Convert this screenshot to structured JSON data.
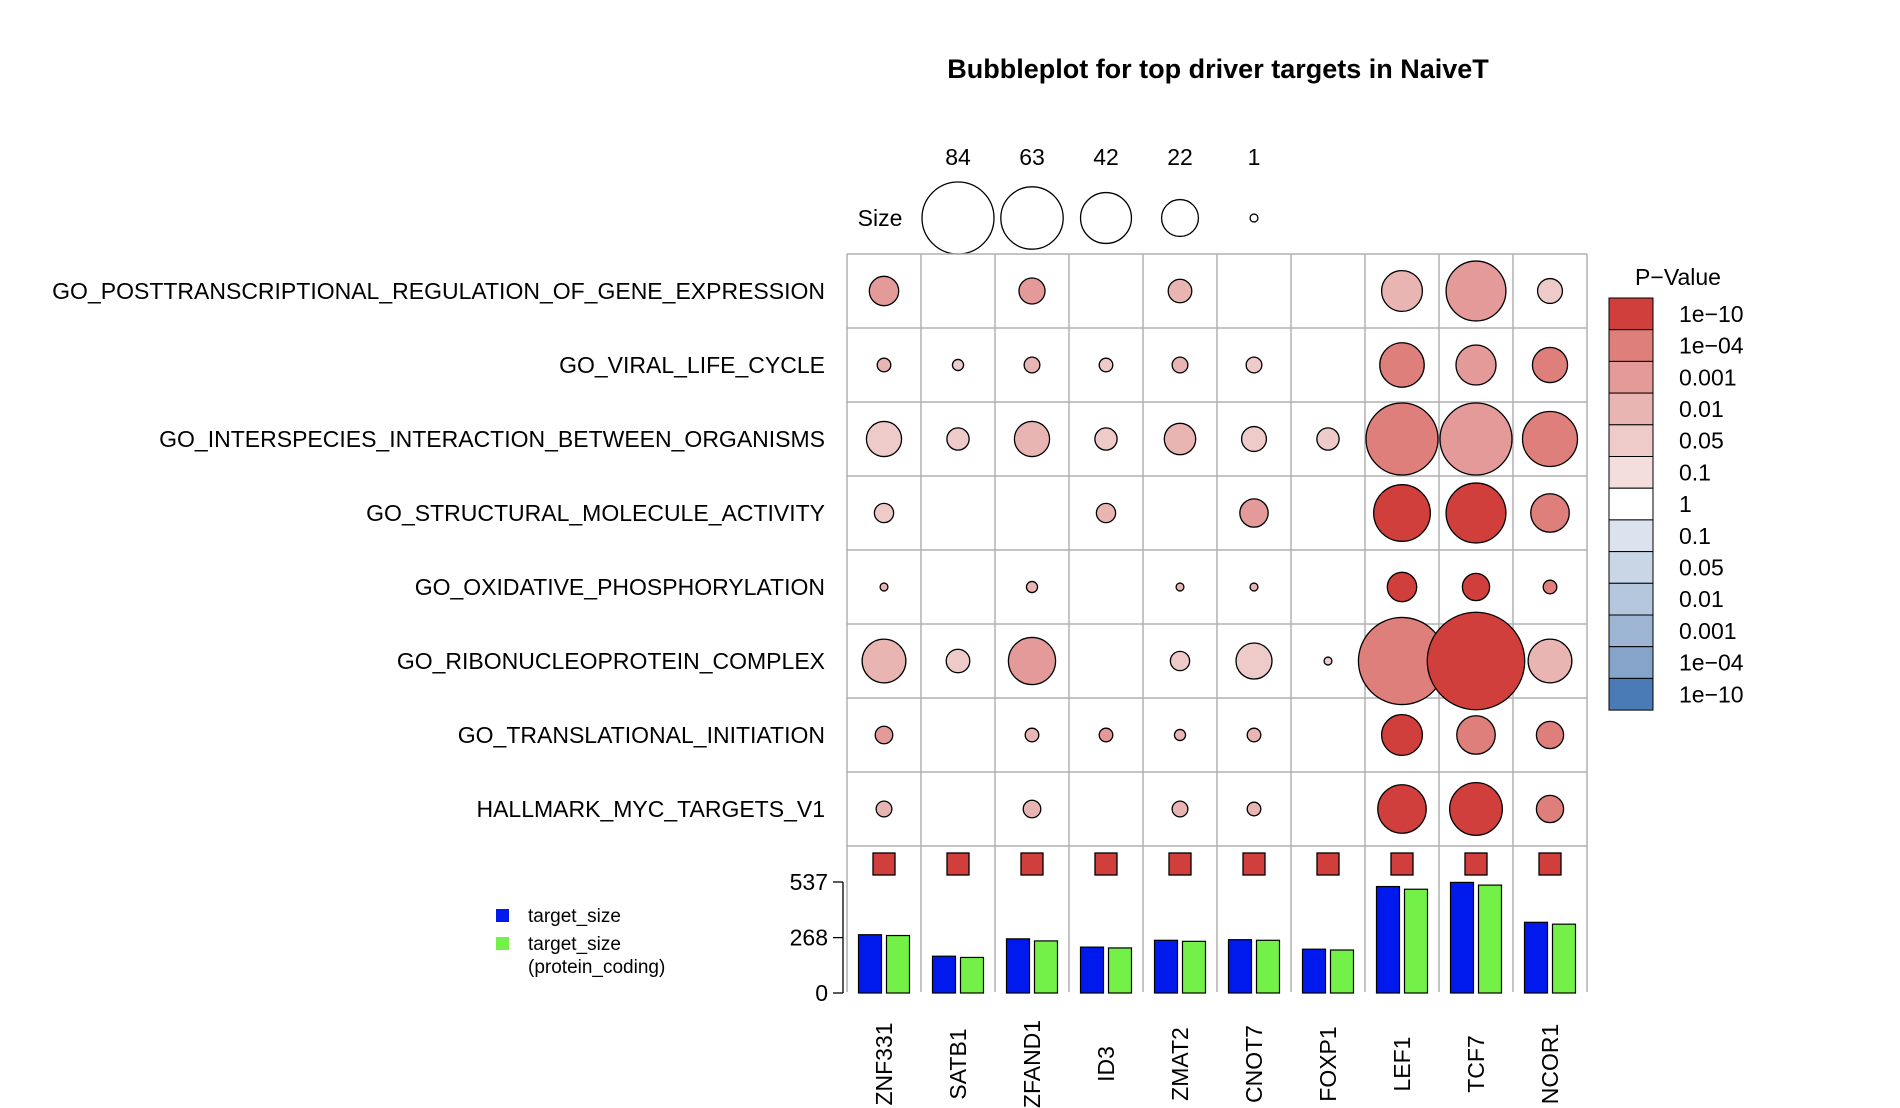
{
  "chart_data": {
    "type": "bubble",
    "title": "Bubbleplot for top driver targets in NaiveT",
    "drivers": [
      "ZNF331",
      "SATB1",
      "ZFAND1",
      "ID3",
      "ZMAT2",
      "CNOT7",
      "FOXP1",
      "LEF1",
      "TCF7",
      "NCOR1"
    ],
    "gene_sets": [
      "GO_POSTTRANSCRIPTIONAL_REGULATION_OF_GENE_EXPRESSION",
      "GO_VIRAL_LIFE_CYCLE",
      "GO_INTERSPECIES_INTERACTION_BETWEEN_ORGANISMS",
      "GO_STRUCTURAL_MOLECULE_ACTIVITY",
      "GO_OXIDATIVE_PHOSPHORYLATION",
      "GO_RIBONUCLEOPROTEIN_COMPLEX",
      "GO_TRANSLATIONAL_INITIATION",
      "HALLMARK_MYC_TARGETS_V1"
    ],
    "size_legend": {
      "label": "Size",
      "values": [
        84,
        63,
        42,
        22,
        1
      ]
    },
    "pvalue_legend": {
      "title": "P−Value",
      "labels": [
        "1e−10",
        "1e−04",
        "0.001",
        "0.01",
        "0.05",
        "0.1",
        "1",
        "0.1",
        "0.05",
        "0.01",
        "0.001",
        "1e−04",
        "1e−10"
      ],
      "colors": [
        "#d13f3c",
        "#df7f7c",
        "#e39a98",
        "#e9b5b3",
        "#eecac9",
        "#f3dedd",
        "#ffffff",
        "#dbe4ee",
        "#c8d6e6",
        "#b5c7dd",
        "#9db5d2",
        "#86a4c9",
        "#4a7bb7"
      ]
    },
    "bubbles": [
      [
        {
          "size": 14,
          "level": 2
        },
        null,
        {
          "size": 11,
          "level": 2
        },
        null,
        {
          "size": 9,
          "level": 3
        },
        null,
        null,
        {
          "size": 27,
          "level": 3
        },
        {
          "size": 58,
          "level": 2
        },
        {
          "size": 10,
          "level": 4
        }
      ],
      [
        {
          "size": 3,
          "level": 3
        },
        {
          "size": 2,
          "level": 4
        },
        {
          "size": 4,
          "level": 3
        },
        {
          "size": 3,
          "level": 4
        },
        {
          "size": 4,
          "level": 3
        },
        {
          "size": 4,
          "level": 4
        },
        null,
        {
          "size": 32,
          "level": 1
        },
        {
          "size": 26,
          "level": 2
        },
        {
          "size": 20,
          "level": 1
        }
      ],
      [
        {
          "size": 20,
          "level": 4
        },
        {
          "size": 8,
          "level": 4
        },
        {
          "size": 20,
          "level": 3
        },
        {
          "size": 8,
          "level": 4
        },
        {
          "size": 16,
          "level": 3
        },
        {
          "size": 10,
          "level": 4
        },
        {
          "size": 8,
          "level": 4
        },
        {
          "size": 84,
          "level": 1
        },
        {
          "size": 84,
          "level": 2
        },
        {
          "size": 49,
          "level": 1
        }
      ],
      [
        {
          "size": 6,
          "level": 4
        },
        null,
        null,
        {
          "size": 6,
          "level": 3
        },
        null,
        {
          "size": 13,
          "level": 2
        },
        null,
        {
          "size": 52,
          "level": 0
        },
        {
          "size": 58,
          "level": 0
        },
        {
          "size": 24,
          "level": 1
        }
      ],
      [
        {
          "size": 1,
          "level": 3
        },
        null,
        {
          "size": 2,
          "level": 3
        },
        null,
        {
          "size": 1,
          "level": 3
        },
        {
          "size": 1,
          "level": 3
        },
        null,
        {
          "size": 14,
          "level": 0
        },
        {
          "size": 12,
          "level": 0
        },
        {
          "size": 3,
          "level": 1
        }
      ],
      [
        {
          "size": 31,
          "level": 3
        },
        {
          "size": 9,
          "level": 4
        },
        {
          "size": 36,
          "level": 2
        },
        null,
        {
          "size": 6,
          "level": 4
        },
        {
          "size": 21,
          "level": 4
        },
        {
          "size": 1,
          "level": 4
        },
        {
          "size": 123,
          "level": 1
        },
        {
          "size": 154,
          "level": 0
        },
        {
          "size": 31,
          "level": 3
        }
      ],
      [
        {
          "size": 5,
          "level": 2
        },
        null,
        {
          "size": 3,
          "level": 3
        },
        {
          "size": 3,
          "level": 2
        },
        {
          "size": 2,
          "level": 3
        },
        {
          "size": 3,
          "level": 3
        },
        null,
        {
          "size": 27,
          "level": 0
        },
        {
          "size": 24,
          "level": 1
        },
        {
          "size": 12,
          "level": 1
        }
      ],
      [
        {
          "size": 4,
          "level": 3
        },
        null,
        {
          "size": 5,
          "level": 3
        },
        null,
        {
          "size": 4,
          "level": 3
        },
        {
          "size": 3,
          "level": 3
        },
        null,
        {
          "size": 38,
          "level": 0
        },
        {
          "size": 45,
          "level": 0
        },
        {
          "size": 12,
          "level": 1
        }
      ]
    ],
    "driver_marker_color": "#d13f3c",
    "bars": {
      "y_ticks": [
        0,
        268,
        537
      ],
      "ylim": [
        0,
        537
      ],
      "series": [
        {
          "name": "target_size",
          "color": "#0019ec",
          "values": [
            282,
            178,
            262,
            222,
            255,
            258,
            212,
            515,
            535,
            342
          ]
        },
        {
          "name": "target_size\n(protein_coding)",
          "color": "#73f148",
          "values": [
            278,
            172,
            252,
            218,
            250,
            255,
            208,
            502,
            522,
            333
          ]
        }
      ]
    },
    "bar_legend": [
      {
        "line1": "target_size",
        "line2": "",
        "color": "#0019ec"
      },
      {
        "line1": "target_size",
        "line2": "(protein_coding)",
        "color": "#73f148"
      }
    ]
  }
}
